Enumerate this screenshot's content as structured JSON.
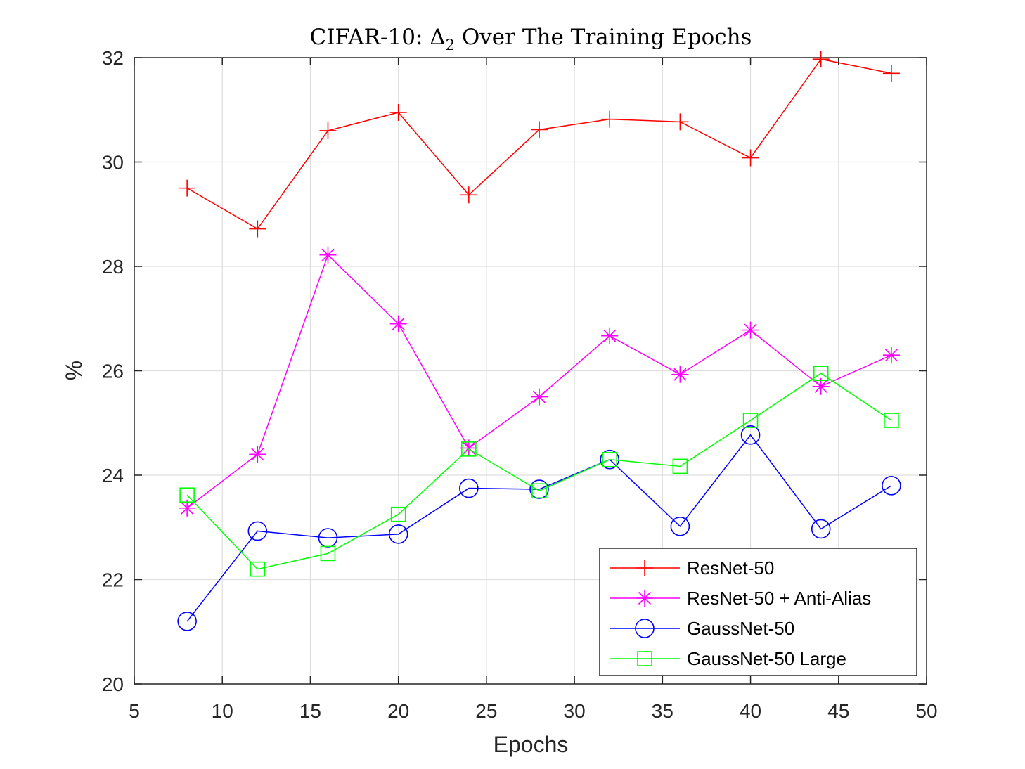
{
  "chart_data": {
    "type": "line",
    "title": "CIFAR-10: Δ",
    "title_subscript": "2",
    "title_rest": " Over The Training Epochs",
    "xlabel": "Epochs",
    "ylabel": "%",
    "xlim": [
      5,
      50
    ],
    "ylim": [
      20,
      32
    ],
    "xticks": [
      "5",
      "10",
      "15",
      "20",
      "25",
      "30",
      "35",
      "40",
      "45",
      "50"
    ],
    "yticks": [
      "20",
      "22",
      "24",
      "26",
      "28",
      "30",
      "32"
    ],
    "grid": true,
    "legend_position": "bottom-right",
    "x": [
      8,
      12,
      16,
      20,
      24,
      28,
      32,
      36,
      40,
      44,
      48
    ],
    "series": [
      {
        "name": "ResNet-50",
        "color": "#ff0000",
        "marker": "plus",
        "values": [
          29.5,
          28.72,
          30.6,
          30.95,
          29.37,
          30.62,
          30.82,
          30.77,
          30.08,
          31.97,
          31.7
        ]
      },
      {
        "name": "ResNet-50 + Anti-Alias",
        "color": "#ff00ff",
        "marker": "asterisk",
        "values": [
          23.37,
          24.4,
          28.22,
          26.9,
          24.52,
          25.5,
          26.67,
          25.93,
          26.78,
          25.7,
          26.3
        ]
      },
      {
        "name": "GaussNet-50",
        "color": "#0000ff",
        "marker": "circle",
        "values": [
          21.2,
          22.93,
          22.8,
          22.87,
          23.75,
          23.73,
          24.3,
          23.02,
          24.77,
          22.97,
          23.8
        ]
      },
      {
        "name": "GaussNet-50 Large",
        "color": "#00ff00",
        "marker": "square",
        "values": [
          23.62,
          22.2,
          22.5,
          23.25,
          24.5,
          23.7,
          24.3,
          24.17,
          25.05,
          25.95,
          25.05
        ]
      }
    ]
  }
}
